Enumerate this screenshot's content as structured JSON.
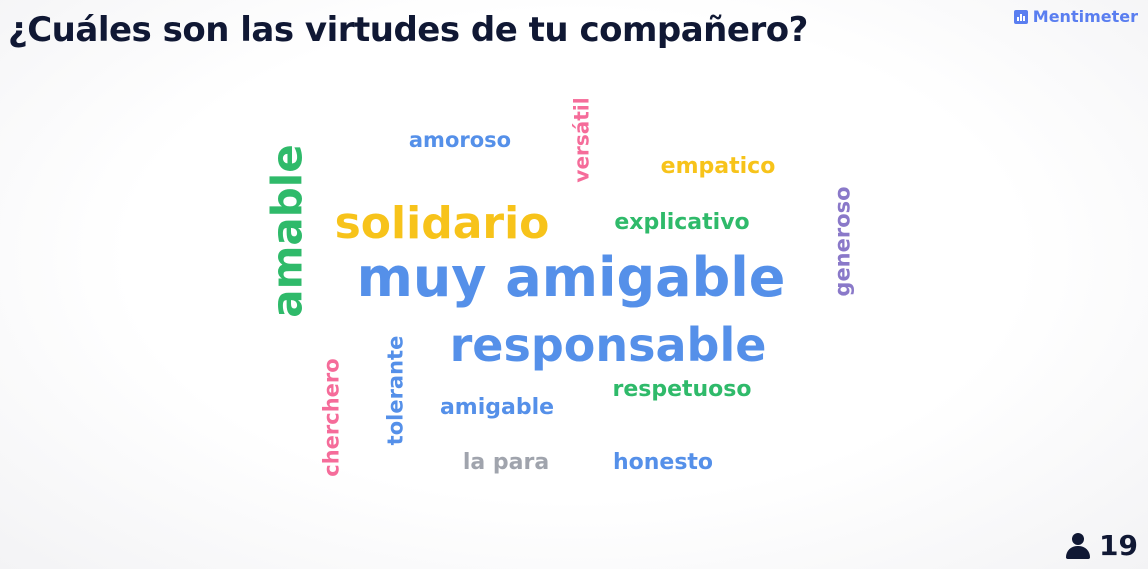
{
  "header": {
    "question": "¿Cuáles son las virtudes de tu compañero?",
    "brand": "Mentimeter",
    "brand_icon": "bar-chart-icon"
  },
  "participants": {
    "icon": "person-icon",
    "count": "19"
  },
  "word_cloud": [
    {
      "text": "muy amigable",
      "color": "#5590e9"
    },
    {
      "text": "responsable",
      "color": "#5590e9"
    },
    {
      "text": "solidario",
      "color": "#f7c31a"
    },
    {
      "text": "amable",
      "color": "#2fba6a"
    },
    {
      "text": "amoroso",
      "color": "#5590e9"
    },
    {
      "text": "versátil",
      "color": "#f56c9a"
    },
    {
      "text": "empatico",
      "color": "#f7c31a"
    },
    {
      "text": "explicativo",
      "color": "#2fba6a"
    },
    {
      "text": "generoso",
      "color": "#8a79c9"
    },
    {
      "text": "respetuoso",
      "color": "#2fba6a"
    },
    {
      "text": "amigable",
      "color": "#5590e9"
    },
    {
      "text": "tolerante",
      "color": "#5590e9"
    },
    {
      "text": "cherchero",
      "color": "#f56c9a"
    },
    {
      "text": "la para",
      "color": "#a0a4ad"
    },
    {
      "text": "honesto",
      "color": "#5590e9"
    }
  ]
}
